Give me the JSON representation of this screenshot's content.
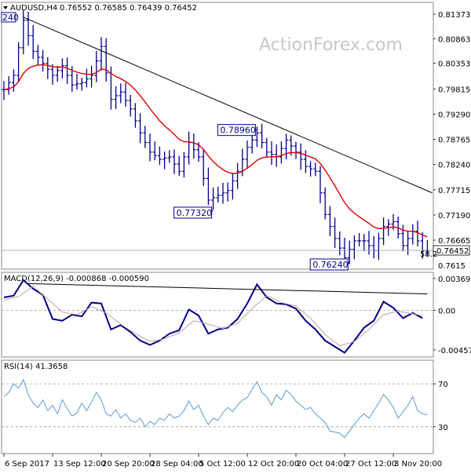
{
  "colors": {
    "price": "#00008b",
    "ma": "#e00000",
    "trendline": "#000000",
    "macd": "#00008b",
    "signal": "#c8a0a0",
    "rsi": "#5b9bd5",
    "grid": "#9a9a9a",
    "frame": "#888888"
  },
  "icons": {
    "collapse": "triangle-down-icon"
  },
  "watermark": "ActionForex.com",
  "chart_data": [
    {
      "type": "ohlc",
      "panel": "price",
      "title": "AUDUSD,H4",
      "ohlc_text": "0.76552 0.76585 0.76439 0.76452",
      "ylim": [
        0.7606,
        0.8162
      ],
      "yticks": [
        "0.81373",
        "0.80863",
        "0.80353",
        "0.79815",
        "0.79290",
        "0.78765",
        "0.78240",
        "0.77715",
        "0.77190",
        "0.76665"
      ],
      "current_price": "0.76452",
      "last_tick_fragment": "0.7615",
      "left_label_fragment": "240",
      "right_overflow_label": "58.2",
      "annotations": [
        {
          "label": "0.78960",
          "x_index": 52,
          "price": 0.7896
        },
        {
          "label": "0.77320",
          "x_index": 43,
          "price": 0.7732
        },
        {
          "label": "0.76240",
          "x_index": 71,
          "price": 0.7624
        }
      ],
      "close_anchors": [
        [
          0,
          0.798
        ],
        [
          2,
          0.801
        ],
        [
          4,
          0.8125
        ],
        [
          6,
          0.806
        ],
        [
          8,
          0.8035
        ],
        [
          10,
          0.801
        ],
        [
          12,
          0.803
        ],
        [
          14,
          0.799
        ],
        [
          16,
          0.7995
        ],
        [
          18,
          0.801
        ],
        [
          20,
          0.807
        ],
        [
          22,
          0.796
        ],
        [
          24,
          0.7975
        ],
        [
          26,
          0.794
        ],
        [
          28,
          0.789
        ],
        [
          30,
          0.785
        ],
        [
          32,
          0.7835
        ],
        [
          34,
          0.784
        ],
        [
          36,
          0.781
        ],
        [
          38,
          0.787
        ],
        [
          40,
          0.784
        ],
        [
          42,
          0.775
        ],
        [
          44,
          0.776
        ],
        [
          46,
          0.777
        ],
        [
          48,
          0.781
        ],
        [
          50,
          0.786
        ],
        [
          52,
          0.789
        ],
        [
          54,
          0.785
        ],
        [
          56,
          0.784
        ],
        [
          58,
          0.7875
        ],
        [
          60,
          0.785
        ],
        [
          62,
          0.782
        ],
        [
          64,
          0.781
        ],
        [
          66,
          0.772
        ],
        [
          68,
          0.767
        ],
        [
          70,
          0.763
        ],
        [
          72,
          0.7665
        ],
        [
          74,
          0.7665
        ],
        [
          76,
          0.7645
        ],
        [
          78,
          0.7695
        ],
        [
          80,
          0.7705
        ],
        [
          82,
          0.7655
        ],
        [
          84,
          0.7685
        ],
        [
          86,
          0.7645
        ]
      ],
      "trendline": [
        [
          4,
          0.8131
        ],
        [
          88,
          0.7765
        ]
      ]
    },
    {
      "type": "line",
      "panel": "macd",
      "title": "MACD(12,26,9) -0.000868 -0.000590",
      "ylim": [
        -0.0054,
        0.0044
      ],
      "yticks": [
        "0.003694",
        "0.00",
        "-0.004574"
      ],
      "series": [
        {
          "name": "MACD",
          "points": [
            [
              0,
              0.0015
            ],
            [
              2,
              0.0017
            ],
            [
              4,
              0.0035
            ],
            [
              6,
              0.0025
            ],
            [
              8,
              0.0018
            ],
            [
              10,
              -0.001
            ],
            [
              12,
              -0.0012
            ],
            [
              14,
              -0.0005
            ],
            [
              16,
              -0.0007
            ],
            [
              18,
              0.0009
            ],
            [
              20,
              0.0008
            ],
            [
              22,
              -0.0022
            ],
            [
              24,
              -0.0017
            ],
            [
              26,
              -0.0025
            ],
            [
              28,
              -0.0035
            ],
            [
              30,
              -0.004
            ],
            [
              32,
              -0.0035
            ],
            [
              34,
              -0.0027
            ],
            [
              36,
              -0.0023
            ],
            [
              38,
              0.0001
            ],
            [
              40,
              -0.0006
            ],
            [
              42,
              -0.0027
            ],
            [
              44,
              -0.0022
            ],
            [
              46,
              -0.002
            ],
            [
              48,
              -0.001
            ],
            [
              50,
              0.0008
            ],
            [
              52,
              0.003
            ],
            [
              54,
              0.0015
            ],
            [
              56,
              0.0008
            ],
            [
              58,
              0.0007
            ],
            [
              60,
              0.0002
            ],
            [
              62,
              -0.0012
            ],
            [
              64,
              -0.0022
            ],
            [
              66,
              -0.0035
            ],
            [
              68,
              -0.0042
            ],
            [
              70,
              -0.0049
            ],
            [
              72,
              -0.0035
            ],
            [
              74,
              -0.002
            ],
            [
              76,
              -0.0012
            ],
            [
              78,
              0.001
            ],
            [
              80,
              0.0003
            ],
            [
              82,
              -0.0009
            ],
            [
              84,
              -0.0003
            ],
            [
              86,
              -0.0009
            ]
          ]
        },
        {
          "name": "Signal",
          "points": [
            [
              0,
              0.0012
            ],
            [
              3,
              0.0016
            ],
            [
              6,
              0.0028
            ],
            [
              9,
              0.0013
            ],
            [
              12,
              -0.0002
            ],
            [
              15,
              -0.0005
            ],
            [
              18,
              0.0004
            ],
            [
              21,
              -0.0003
            ],
            [
              24,
              -0.0016
            ],
            [
              27,
              -0.0027
            ],
            [
              30,
              -0.0036
            ],
            [
              33,
              -0.0033
            ],
            [
              36,
              -0.0026
            ],
            [
              39,
              -0.0012
            ],
            [
              42,
              -0.0016
            ],
            [
              45,
              -0.0021
            ],
            [
              48,
              -0.0015
            ],
            [
              51,
              0.0002
            ],
            [
              54,
              0.0017
            ],
            [
              57,
              0.0009
            ],
            [
              60,
              0.0005
            ],
            [
              63,
              -0.0009
            ],
            [
              66,
              -0.0028
            ],
            [
              69,
              -0.0041
            ],
            [
              72,
              -0.0036
            ],
            [
              75,
              -0.0022
            ],
            [
              78,
              -0.0005
            ],
            [
              81,
              -0.0001
            ],
            [
              84,
              -0.0004
            ],
            [
              86,
              -0.0006
            ]
          ]
        }
      ],
      "trendline": [
        [
          5,
          0.0031
        ],
        [
          87,
          0.0019
        ]
      ]
    },
    {
      "type": "line",
      "panel": "rsi",
      "title": "RSI(14) 41.3658",
      "ylim": [
        5,
        92
      ],
      "yticks": [
        "70",
        "30"
      ],
      "levels": [
        70,
        30
      ],
      "series": [
        {
          "name": "RSI",
          "points": [
            [
              0,
              58
            ],
            [
              1,
              62
            ],
            [
              2,
              70
            ],
            [
              3,
              66
            ],
            [
              4,
              74
            ],
            [
              5,
              60
            ],
            [
              6,
              52
            ],
            [
              7,
              48
            ],
            [
              8,
              55
            ],
            [
              9,
              45
            ],
            [
              10,
              50
            ],
            [
              11,
              42
            ],
            [
              12,
              55
            ],
            [
              13,
              47
            ],
            [
              14,
              40
            ],
            [
              15,
              43
            ],
            [
              16,
              52
            ],
            [
              17,
              45
            ],
            [
              18,
              53
            ],
            [
              19,
              62
            ],
            [
              20,
              55
            ],
            [
              21,
              42
            ],
            [
              22,
              40
            ],
            [
              23,
              46
            ],
            [
              24,
              38
            ],
            [
              25,
              42
            ],
            [
              26,
              36
            ],
            [
              27,
              34
            ],
            [
              28,
              38
            ],
            [
              29,
              30
            ],
            [
              30,
              35
            ],
            [
              31,
              32
            ],
            [
              32,
              38
            ],
            [
              33,
              36
            ],
            [
              34,
              42
            ],
            [
              35,
              38
            ],
            [
              36,
              40
            ],
            [
              37,
              45
            ],
            [
              38,
              54
            ],
            [
              39,
              46
            ],
            [
              40,
              50
            ],
            [
              41,
              40
            ],
            [
              42,
              32
            ],
            [
              43,
              38
            ],
            [
              44,
              36
            ],
            [
              45,
              43
            ],
            [
              46,
              48
            ],
            [
              47,
              44
            ],
            [
              48,
              50
            ],
            [
              49,
              55
            ],
            [
              50,
              57
            ],
            [
              51,
              65
            ],
            [
              52,
              72
            ],
            [
              53,
              62
            ],
            [
              54,
              58
            ],
            [
              55,
              50
            ],
            [
              56,
              60
            ],
            [
              57,
              55
            ],
            [
              58,
              64
            ],
            [
              59,
              60
            ],
            [
              60,
              54
            ],
            [
              61,
              50
            ],
            [
              62,
              46
            ],
            [
              63,
              48
            ],
            [
              64,
              42
            ],
            [
              65,
              38
            ],
            [
              66,
              34
            ],
            [
              67,
              26
            ],
            [
              68,
              25
            ],
            [
              69,
              24
            ],
            [
              70,
              20
            ],
            [
              71,
              26
            ],
            [
              72,
              32
            ],
            [
              73,
              38
            ],
            [
              74,
              42
            ],
            [
              75,
              38
            ],
            [
              76,
              45
            ],
            [
              77,
              52
            ],
            [
              78,
              60
            ],
            [
              79,
              55
            ],
            [
              80,
              48
            ],
            [
              81,
              38
            ],
            [
              82,
              44
            ],
            [
              83,
              50
            ],
            [
              84,
              58
            ],
            [
              85,
              45
            ],
            [
              86,
              42
            ],
            [
              87,
              41
            ]
          ]
        }
      ]
    }
  ],
  "x_axis": {
    "labels": [
      "6 Sep 2017",
      "13 Sep 12:00",
      "20 Sep 20:00",
      "28 Sep 04:00",
      "5 Oct 12:00",
      "12 Oct 20:00",
      "20 Oct 04:00",
      "27 Oct 12:00",
      "3 Nov 20:00"
    ],
    "positions": [
      0,
      10,
      20,
      30,
      40,
      50,
      60,
      70,
      80
    ]
  }
}
